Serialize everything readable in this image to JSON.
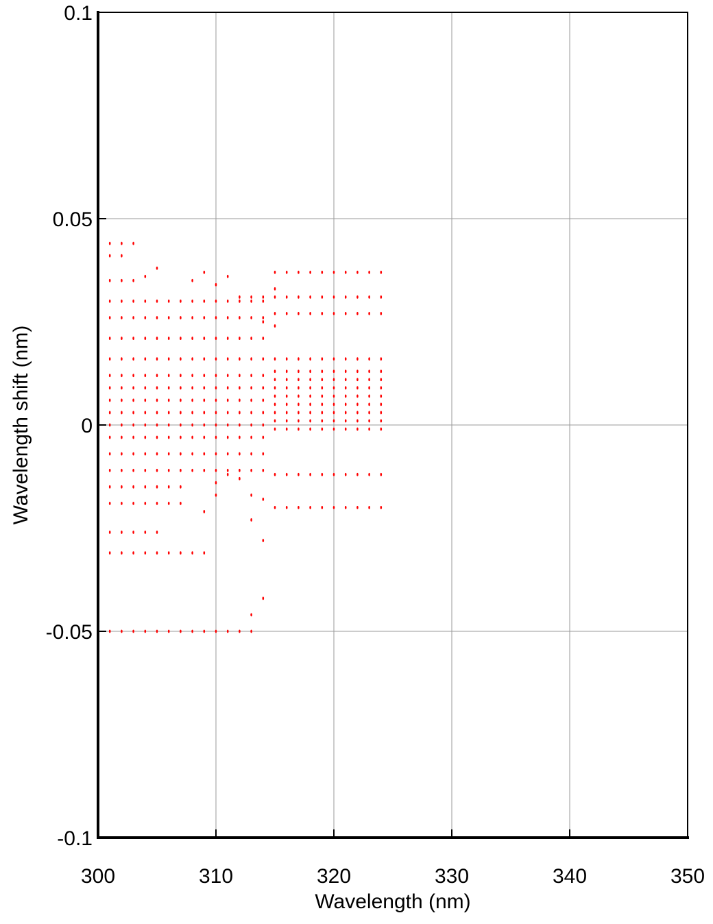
{
  "chart_data": {
    "type": "scatter",
    "x_label": "Wavelength (nm)",
    "y_label": "Wavelength shift (nm)",
    "xlim": [
      300,
      350
    ],
    "ylim": [
      -0.1,
      0.1
    ],
    "xticks": [
      300,
      310,
      320,
      330,
      340,
      350
    ],
    "yticks": [
      -0.1,
      -0.05,
      0,
      0.05,
      0.1
    ],
    "grid": true,
    "color": "#ff0000",
    "series": [
      {
        "x": 300,
        "values": [
          -0.007,
          -0.003,
          0,
          0.003,
          0.006,
          0.009,
          0.012,
          0.016,
          0.021,
          0.026,
          0.03,
          -0.011,
          -0.05,
          -0.015,
          -0.019,
          0.044,
          0.041,
          0.035
        ]
      },
      {
        "x": 301,
        "values": [
          -0.007,
          -0.003,
          0,
          0.003,
          0.006,
          0.009,
          0.012,
          0.016,
          0.021,
          0.026,
          0.03,
          -0.011,
          -0.05,
          -0.015,
          -0.019,
          0.044,
          0.041,
          0.035,
          -0.031,
          -0.026
        ]
      },
      {
        "x": 302,
        "values": [
          -0.007,
          -0.003,
          0,
          0.003,
          0.006,
          0.009,
          0.012,
          0.016,
          0.021,
          0.026,
          0.03,
          -0.011,
          -0.05,
          -0.015,
          -0.019,
          0.044,
          0.041,
          0.035,
          -0.031,
          -0.026
        ]
      },
      {
        "x": 303,
        "values": [
          -0.007,
          -0.003,
          0,
          0.003,
          0.006,
          0.009,
          0.012,
          0.016,
          0.021,
          0.026,
          0.03,
          -0.011,
          -0.05,
          -0.015,
          -0.019,
          0.044,
          0.035,
          -0.031,
          -0.026
        ]
      },
      {
        "x": 304,
        "values": [
          -0.007,
          -0.003,
          0,
          0.003,
          0.006,
          0.009,
          0.012,
          0.016,
          0.021,
          0.026,
          0.03,
          -0.011,
          -0.05,
          -0.015,
          -0.019,
          0.036,
          -0.031,
          -0.026
        ]
      },
      {
        "x": 305,
        "values": [
          -0.007,
          -0.003,
          0,
          0.003,
          0.006,
          0.009,
          0.012,
          0.016,
          0.021,
          0.026,
          0.03,
          -0.011,
          -0.05,
          -0.015,
          -0.019,
          -0.031,
          -0.026,
          0.038
        ]
      },
      {
        "x": 306,
        "values": [
          -0.007,
          -0.003,
          0,
          0.003,
          0.006,
          0.009,
          0.012,
          0.016,
          0.021,
          0.026,
          0.03,
          -0.011,
          -0.05,
          -0.015,
          -0.019,
          -0.031
        ]
      },
      {
        "x": 307,
        "values": [
          -0.007,
          -0.003,
          0,
          0.003,
          0.006,
          0.009,
          0.012,
          0.016,
          0.021,
          0.026,
          0.03,
          -0.011,
          -0.05,
          -0.015,
          -0.019,
          -0.031
        ]
      },
      {
        "x": 308,
        "values": [
          -0.007,
          -0.003,
          0,
          0.003,
          0.006,
          0.009,
          0.012,
          0.016,
          0.021,
          0.026,
          0.03,
          -0.011,
          -0.05,
          -0.031,
          0.035
        ]
      },
      {
        "x": 309,
        "values": [
          -0.007,
          -0.003,
          0,
          0.003,
          0.006,
          0.009,
          0.012,
          0.016,
          0.021,
          0.026,
          0.03,
          -0.011,
          -0.05,
          -0.031,
          -0.021,
          0.037
        ]
      },
      {
        "x": 310,
        "values": [
          -0.007,
          -0.003,
          0,
          0.003,
          0.006,
          0.009,
          0.012,
          0.016,
          0.021,
          0.026,
          0.03,
          -0.011,
          -0.05,
          -0.017,
          -0.014,
          0.034
        ]
      },
      {
        "x": 311,
        "values": [
          -0.007,
          -0.003,
          0,
          0.003,
          0.006,
          0.009,
          0.012,
          0.016,
          0.021,
          0.026,
          0.03,
          -0.011,
          -0.05,
          -0.012,
          0.036
        ]
      },
      {
        "x": 312,
        "values": [
          -0.007,
          -0.003,
          0,
          0.003,
          0.006,
          0.009,
          0.012,
          0.016,
          0.021,
          0.026,
          0.03,
          -0.011,
          -0.05,
          -0.013,
          0.031
        ]
      },
      {
        "x": 313,
        "values": [
          -0.007,
          -0.003,
          0,
          0.003,
          0.006,
          0.009,
          0.012,
          0.016,
          0.021,
          0.026,
          0.03,
          -0.011,
          -0.05,
          -0.017,
          -0.023,
          0.031,
          -0.046
        ]
      },
      {
        "x": 314,
        "values": [
          -0.007,
          -0.003,
          0,
          0.003,
          0.006,
          0.009,
          0.012,
          0.016,
          0.021,
          0.026,
          0.03,
          -0.011,
          -0.028,
          -0.042,
          -0.018,
          0.025,
          0.031
        ]
      },
      {
        "x": 315,
        "values": [
          -0.001,
          0.001,
          0.003,
          0.005,
          0.007,
          0.009,
          0.011,
          0.013,
          0.016,
          0.027,
          0.031,
          0.037,
          -0.012,
          -0.02,
          0.033,
          0.024
        ]
      },
      {
        "x": 316,
        "values": [
          -0.001,
          0.001,
          0.003,
          0.005,
          0.007,
          0.009,
          0.011,
          0.013,
          0.016,
          0.027,
          0.031,
          0.037,
          -0.012,
          -0.02
        ]
      },
      {
        "x": 317,
        "values": [
          -0.001,
          0.001,
          0.003,
          0.005,
          0.007,
          0.009,
          0.011,
          0.013,
          0.016,
          0.027,
          0.031,
          0.037,
          -0.012,
          -0.02
        ]
      },
      {
        "x": 318,
        "values": [
          -0.001,
          0.001,
          0.003,
          0.005,
          0.007,
          0.009,
          0.011,
          0.013,
          0.016,
          0.027,
          0.031,
          0.037,
          -0.012,
          -0.02
        ]
      },
      {
        "x": 319,
        "values": [
          -0.001,
          0.001,
          0.003,
          0.005,
          0.007,
          0.009,
          0.011,
          0.013,
          0.016,
          0.027,
          0.031,
          0.037,
          -0.012,
          -0.02
        ]
      },
      {
        "x": 320,
        "values": [
          -0.001,
          0.001,
          0.003,
          0.005,
          0.007,
          0.009,
          0.011,
          0.013,
          0.016,
          0.027,
          0.031,
          0.037,
          -0.012,
          -0.02
        ]
      },
      {
        "x": 321,
        "values": [
          -0.001,
          0.001,
          0.003,
          0.005,
          0.007,
          0.009,
          0.011,
          0.013,
          0.016,
          0.027,
          0.031,
          0.037,
          -0.012,
          -0.02
        ]
      },
      {
        "x": 322,
        "values": [
          -0.001,
          0.001,
          0.003,
          0.005,
          0.007,
          0.009,
          0.011,
          0.013,
          0.016,
          0.027,
          0.031,
          0.037,
          -0.012,
          -0.02
        ]
      },
      {
        "x": 323,
        "values": [
          -0.001,
          0.001,
          0.003,
          0.005,
          0.007,
          0.009,
          0.011,
          0.013,
          0.016,
          0.027,
          0.031,
          0.037,
          -0.012,
          -0.02
        ]
      },
      {
        "x": 324,
        "values": [
          -0.001,
          0.001,
          0.003,
          0.005,
          0.007,
          0.009,
          0.011,
          0.013,
          0.016,
          0.027,
          0.031,
          0.037,
          -0.012,
          -0.02
        ]
      }
    ]
  }
}
